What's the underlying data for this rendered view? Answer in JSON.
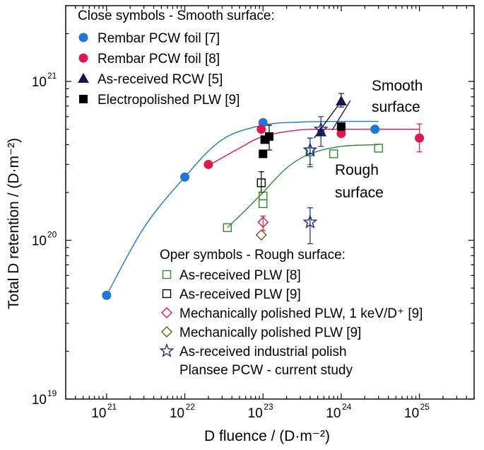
{
  "chart_data": {
    "type": "scatter",
    "xlabel": "D fluence / (D·m⁻²)",
    "ylabel": "Total D retention / (D·m⁻²)",
    "xscale": "log",
    "yscale": "log",
    "xlim": [
      3e+20,
      5e+25
    ],
    "ylim": [
      1e+19,
      3e+21
    ],
    "x_ticks": [
      {
        "base": "10",
        "exp": "21"
      },
      {
        "base": "10",
        "exp": "22"
      },
      {
        "base": "10",
        "exp": "23"
      },
      {
        "base": "10",
        "exp": "24"
      },
      {
        "base": "10",
        "exp": "25"
      }
    ],
    "y_ticks": [
      {
        "base": "10",
        "exp": "19"
      },
      {
        "base": "10",
        "exp": "20"
      },
      {
        "base": "10",
        "exp": "21"
      }
    ],
    "legend_closed_header": "Close symbols - Smooth surface:",
    "legend_open_header": "Oper symbols - Rough surface:",
    "annotations": [
      {
        "line1": "Smooth",
        "line2": "surface",
        "position": "upper-right"
      },
      {
        "line1": "Rough",
        "line2": "surface",
        "position": "middle-right"
      }
    ],
    "series": [
      {
        "name": "Rembar PCW foil [7]",
        "marker": "circle",
        "filled": true,
        "color": "#1f77d4",
        "points": [
          {
            "x": 1e+21,
            "y": 4.5e+19
          },
          {
            "x": 1e+22,
            "y": 2.5e+20
          },
          {
            "x": 1e+23,
            "y": 5.5e+20
          },
          {
            "x": 1e+24,
            "y": 5.1e+20
          },
          {
            "x": 2.7e+24,
            "y": 5e+20
          }
        ],
        "fit": [
          [
            1e+21,
            4.5e+19
          ],
          [
            3e+21,
            1.2e+20
          ],
          [
            1e+22,
            2.5e+20
          ],
          [
            3e+22,
            4.3e+20
          ],
          [
            1e+23,
            5.3e+20
          ],
          [
            3e+23,
            5.55e+20
          ],
          [
            1e+24,
            5.6e+20
          ],
          [
            3e+24,
            5.6e+20
          ]
        ]
      },
      {
        "name": "Rembar PCW foil [8]",
        "marker": "circle",
        "filled": true,
        "color": "#e0184e",
        "points": [
          {
            "x": 2e+22,
            "y": 3e+20
          },
          {
            "x": 9.5e+22,
            "y": 5e+20
          },
          {
            "x": 1e+24,
            "y": 4.7e+20
          },
          {
            "x": 1e+25,
            "y": 4.4e+20,
            "err": [
              3.6e+20,
              5.4e+20
            ]
          }
        ],
        "fit": [
          [
            2e+22,
            2.95e+20
          ],
          [
            5e+22,
            3.8e+20
          ],
          [
            1e+23,
            4.5e+20
          ],
          [
            3e+23,
            4.95e+20
          ],
          [
            1e+24,
            5e+20
          ],
          [
            1e+25,
            5e+20
          ]
        ]
      },
      {
        "name": "As-received RCW [5]",
        "marker": "triangle",
        "filled": true,
        "color": "#151553",
        "points": [
          {
            "x": 5.5e+23,
            "y": 4.8e+20
          },
          {
            "x": 1e+24,
            "y": 7.5e+20,
            "err": [
              6.9e+20,
              8.4e+20
            ]
          }
        ],
        "fit": [
          [
            4.5e+23,
            4.4e+20
          ],
          [
            1e+24,
            7.5e+20
          ]
        ]
      },
      {
        "name": "Electropolished PLW [9]",
        "marker": "square",
        "filled": true,
        "color": "#000000",
        "points": [
          {
            "x": 1e+23,
            "y": 3.5e+20
          },
          {
            "x": 1.05e+23,
            "y": 4.3e+20
          },
          {
            "x": 1.2e+23,
            "y": 4.5e+20,
            "err": [
              3.7e+20,
              5.3e+20
            ]
          },
          {
            "x": 1e+24,
            "y": 5.2e+20
          }
        ]
      },
      {
        "name": "As-received PLW [8]",
        "marker": "square",
        "filled": false,
        "color": "#2e8b2e",
        "points": [
          {
            "x": 3.5e+22,
            "y": 1.2e+20
          },
          {
            "x": 1e+23,
            "y": 1.7e+20
          },
          {
            "x": 1e+23,
            "y": 1.9e+20
          },
          {
            "x": 4e+23,
            "y": 3.6e+20,
            "err": [
              3e+20,
              4.4e+20
            ]
          },
          {
            "x": 8e+23,
            "y": 3.5e+20
          },
          {
            "x": 3e+24,
            "y": 3.8e+20
          }
        ],
        "fit": [
          [
            3.5e+22,
            1.2e+20
          ],
          [
            6e+22,
            1.55e+20
          ],
          [
            1e+23,
            2e+20
          ],
          [
            2e+23,
            2.85e+20
          ],
          [
            4e+23,
            3.5e+20
          ],
          [
            1e+24,
            3.9e+20
          ],
          [
            3e+24,
            4e+20
          ]
        ]
      },
      {
        "name": "As-received PLW [9]",
        "marker": "square",
        "filled": false,
        "color": "#000000",
        "points": [
          {
            "x": 9.5e+22,
            "y": 2.3e+20,
            "err": [
              2e+20,
              2.7e+20
            ]
          }
        ]
      },
      {
        "name": "Mechanically polished PLW, 1 keV/D⁺ [9]",
        "marker": "diamond",
        "filled": false,
        "color": "#e0184e",
        "points": [
          {
            "x": 1e+23,
            "y": 1.3e+20,
            "err": [
              1.15e+20,
              1.42e+20
            ]
          }
        ]
      },
      {
        "name": "Mechanically polished PLW [9]",
        "marker": "diamond",
        "filled": false,
        "color": "#6b5a12",
        "points": [
          {
            "x": 9.5e+22,
            "y": 1.08e+20
          }
        ]
      },
      {
        "name": "As-received industrial polish",
        "name_line2": "Plansee PCW - current study",
        "marker": "star",
        "filled": false,
        "color": "#1a2a80",
        "points": [
          {
            "x": 4e+23,
            "y": 3.7e+20,
            "err": [
              2.9e+20,
              4.4e+20
            ]
          },
          {
            "x": 5.5e+23,
            "y": 5e+20,
            "err": [
              3.9e+20,
              6e+20
            ]
          },
          {
            "x": 4e+23,
            "y": 1.3e+20,
            "err": [
              9.5e+19,
              1.6e+20
            ]
          }
        ]
      }
    ]
  }
}
